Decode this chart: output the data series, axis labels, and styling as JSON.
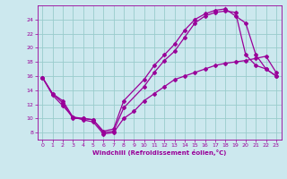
{
  "xlabel": "Windchill (Refroidissement éolien,°C)",
  "xlim": [
    -0.5,
    23.5
  ],
  "ylim": [
    7,
    26
  ],
  "xticks": [
    0,
    1,
    2,
    3,
    4,
    5,
    6,
    7,
    8,
    9,
    10,
    11,
    12,
    13,
    14,
    15,
    16,
    17,
    18,
    19,
    20,
    21,
    22,
    23
  ],
  "yticks": [
    8,
    10,
    12,
    14,
    16,
    18,
    20,
    22,
    24
  ],
  "bg_color": "#cce8ee",
  "line_color": "#990099",
  "grid_color": "#99cccc",
  "line1_x": [
    0,
    1,
    2,
    3,
    4,
    5,
    6,
    7,
    8,
    10,
    11,
    12,
    13,
    14,
    15,
    16,
    17,
    18,
    19,
    20,
    21,
    22,
    23
  ],
  "line1_y": [
    15.8,
    13.5,
    12.2,
    10.0,
    10.0,
    9.8,
    8.0,
    8.2,
    11.5,
    14.5,
    16.5,
    18.2,
    19.5,
    21.5,
    23.5,
    24.5,
    25.0,
    25.2,
    25.0,
    19.0,
    17.5,
    17.0,
    16.0
  ],
  "line2_x": [
    0,
    1,
    2,
    3,
    4,
    5,
    6,
    7,
    8,
    10,
    11,
    12,
    13,
    14,
    15,
    16,
    17,
    18,
    19,
    20,
    21,
    22,
    23
  ],
  "line2_y": [
    15.8,
    13.5,
    12.5,
    10.2,
    10.0,
    9.8,
    8.2,
    8.5,
    12.5,
    15.5,
    17.5,
    19.0,
    20.5,
    22.5,
    24.0,
    24.8,
    25.3,
    25.5,
    24.5,
    23.5,
    19.0,
    17.0,
    16.0
  ],
  "line3_x": [
    0,
    1,
    2,
    3,
    4,
    5,
    6,
    7,
    8,
    9,
    10,
    11,
    12,
    13,
    14,
    15,
    16,
    17,
    18,
    19,
    20,
    21,
    22,
    23
  ],
  "line3_y": [
    15.8,
    13.3,
    11.8,
    10.2,
    9.8,
    9.5,
    7.8,
    8.0,
    10.0,
    11.0,
    12.5,
    13.5,
    14.5,
    15.5,
    16.0,
    16.5,
    17.0,
    17.5,
    17.8,
    18.0,
    18.2,
    18.5,
    18.8,
    16.5
  ]
}
